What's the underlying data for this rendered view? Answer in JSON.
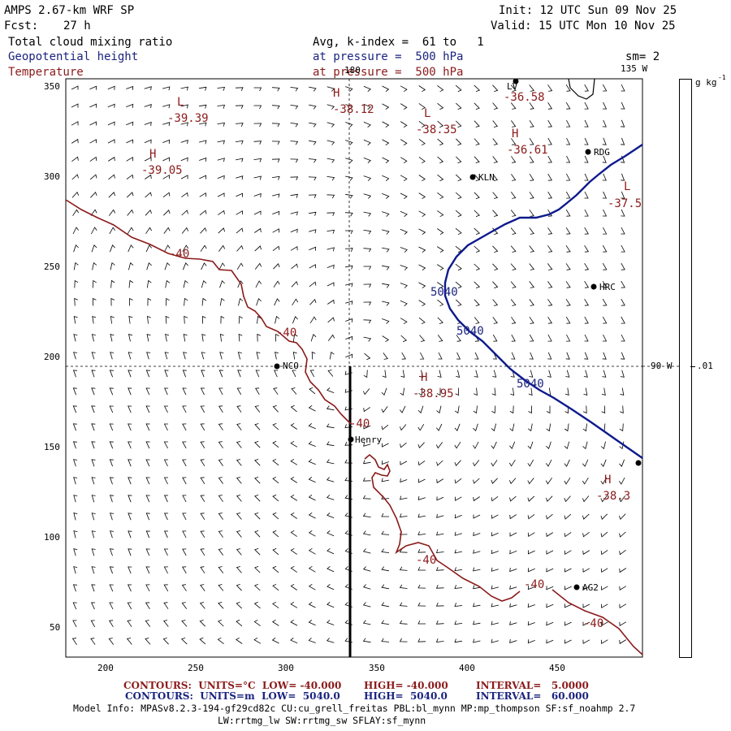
{
  "header": {
    "model": "AMPS 2.67-km WRF SP",
    "init": "Init: 12 UTC Sun 09 Nov 25",
    "fcst_label": "Fcst:",
    "fcst_value": "27 h",
    "valid": "Valid: 15 UTC Mon 10 Nov 25",
    "field1": "Total cloud mixing ratio",
    "field1_detail": "Avg, k-index =  61 to   1",
    "field2": "Geopotential height",
    "field2_detail": "at pressure =  500 hPa",
    "field3": "Temperature",
    "field3_detail": "at pressure =  500 hPa",
    "smoothing": "sm= 2"
  },
  "axes": {
    "x_ticks": [
      "200",
      "250",
      "300",
      "350",
      "400",
      "450"
    ],
    "y_ticks": [
      "350",
      "300",
      "250",
      "200",
      "150",
      "100",
      "50"
    ],
    "meridian_180": "180",
    "meridian_135w": "135 W",
    "meridian_90w": "90 W"
  },
  "colorbar": {
    "units": "g kg",
    "units_exp": "-1",
    "tick": ".01"
  },
  "stations": [
    {
      "name": "LV"
    },
    {
      "name": "RDG"
    },
    {
      "name": "KLN"
    },
    {
      "name": "HRC"
    },
    {
      "name": "NCO"
    },
    {
      "name": "Henry"
    },
    {
      "name": "AG2"
    },
    {
      "name": ""
    }
  ],
  "labels": {
    "temp_contour": "-40",
    "height_contour": "5040",
    "extrema": [
      {
        "type": "L",
        "value": "-39.39"
      },
      {
        "type": "H",
        "value": "-38.12"
      },
      {
        "type": "L",
        "value": "-38.35"
      },
      {
        "type": "H",
        "value": "-36.58"
      },
      {
        "type": "H",
        "value": "-36.61"
      },
      {
        "type": "H",
        "value": "-39.05"
      },
      {
        "type": "L",
        "value": "-37.5"
      },
      {
        "type": "H",
        "value": "-38.95"
      },
      {
        "type": "H",
        "value": "-38.3"
      }
    ]
  },
  "footer": {
    "temp_contours": "CONTOURS:  UNITS=°C  LOW= -40.000",
    "temp_high": "HIGH= -40.000",
    "temp_interval": "INTERVAL=   5.0000",
    "hgt_contours": "CONTOURS:  UNITS=m  LOW=  5040.0",
    "hgt_high": "HIGH=  5040.0",
    "hgt_interval": "INTERVAL=   60.000",
    "model_info": "Model Info: MPASv8.2.3-194-gf29cd82c CU:cu_grell_freitas PBL:bl_mynn MP:mp_thompson SF:sf_noahmp 2.7",
    "model_info2": "LW:rrtmg_lw SW:rrtmg_sw SFLAY:sf_mynn"
  },
  "colors": {
    "temperature": "#8b1a1a",
    "height": "#0d1a8c",
    "text_blue": "#1a237e"
  }
}
